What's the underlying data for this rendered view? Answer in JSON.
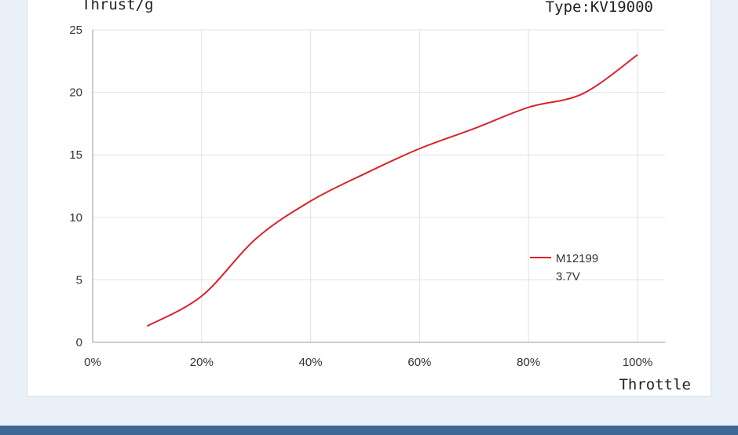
{
  "chart_data": {
    "type": "line",
    "ylabel": "Thrust/g",
    "xlabel": "Throttle",
    "subtitle": "Type:KV19000",
    "xlim": [
      0,
      100
    ],
    "ylim": [
      0,
      25
    ],
    "x_ticks": [
      0,
      20,
      40,
      60,
      80,
      100
    ],
    "x_tick_labels": [
      "0%",
      "20%",
      "40%",
      "60%",
      "80%",
      "100%"
    ],
    "y_ticks": [
      0,
      5,
      10,
      15,
      20,
      25
    ],
    "y_tick_labels": [
      "0",
      "5",
      "10",
      "15",
      "20",
      "25"
    ],
    "grid": true,
    "legend_position": "right",
    "series": [
      {
        "name": "M12199",
        "name_line2": "3.7V",
        "color": "#d9232b",
        "x": [
          10,
          20,
          30,
          40,
          50,
          60,
          70,
          80,
          90,
          100
        ],
        "y": [
          1.3,
          3.7,
          8.3,
          11.3,
          13.5,
          15.5,
          17.1,
          18.8,
          19.9,
          23.0
        ]
      }
    ]
  }
}
